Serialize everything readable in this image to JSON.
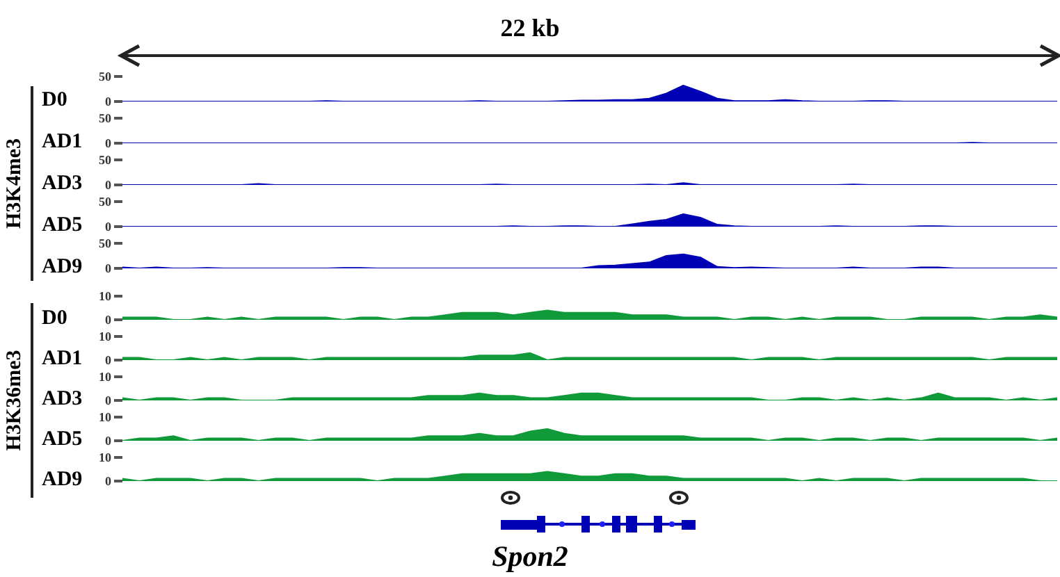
{
  "chart_data": [
    {
      "type": "area",
      "title": "22 kb",
      "annotations": [
        "H3K4me3"
      ],
      "ylabel": "D0",
      "color": "#0000b4",
      "ylim": [
        0,
        50
      ],
      "yticks": [
        0,
        50
      ],
      "categories": [
        null,
        null,
        null,
        null,
        null,
        null,
        null,
        null,
        null,
        null,
        null,
        null,
        null,
        null,
        null,
        null,
        null,
        null,
        null,
        null,
        null,
        null,
        null,
        null,
        null,
        null,
        null,
        null,
        null,
        null,
        null,
        null,
        null,
        null,
        null,
        null,
        null,
        null,
        null,
        null,
        null,
        null,
        null,
        null,
        null,
        null,
        null,
        null,
        null,
        null,
        null,
        null,
        null,
        null,
        null,
        null
      ],
      "values": [
        0,
        0,
        0,
        0,
        0,
        0,
        0,
        0,
        0,
        0,
        0,
        0,
        1,
        0,
        0,
        0,
        0,
        0,
        0,
        0,
        0,
        1,
        0,
        0,
        0,
        0,
        1,
        2,
        2,
        3,
        3,
        6,
        16,
        32,
        20,
        6,
        1,
        1,
        1,
        3,
        1,
        0,
        0,
        0,
        1,
        1,
        0,
        0,
        0,
        0,
        0,
        0,
        0,
        0,
        0,
        0
      ]
    },
    {
      "type": "area",
      "ylabel": "AD1",
      "color": "#0000b4",
      "ylim": [
        0,
        50
      ],
      "yticks": [
        0,
        50
      ],
      "categories": [
        null,
        null,
        null,
        null,
        null,
        null,
        null,
        null,
        null,
        null,
        null,
        null,
        null,
        null,
        null,
        null,
        null,
        null,
        null,
        null,
        null,
        null,
        null,
        null,
        null,
        null,
        null,
        null,
        null,
        null,
        null,
        null,
        null,
        null,
        null,
        null,
        null,
        null,
        null,
        null,
        null,
        null,
        null,
        null,
        null,
        null,
        null,
        null,
        null,
        null,
        null,
        null,
        null,
        null,
        null,
        null
      ],
      "values": [
        0,
        0,
        0,
        0,
        0,
        0,
        0,
        0,
        0,
        0,
        0,
        0,
        0,
        0,
        0,
        0,
        0,
        0,
        0,
        0,
        0,
        0,
        0,
        0,
        0,
        0,
        0,
        0,
        0,
        0,
        0,
        0,
        0,
        0,
        0,
        0,
        0,
        0,
        0,
        0,
        0,
        0,
        0,
        0,
        0,
        0,
        0,
        0,
        0,
        0,
        1,
        0,
        0,
        0,
        0,
        0
      ]
    },
    {
      "type": "area",
      "ylabel": "AD3",
      "color": "#0000b4",
      "ylim": [
        0,
        50
      ],
      "yticks": [
        0,
        50
      ],
      "categories": [
        null,
        null,
        null,
        null,
        null,
        null,
        null,
        null,
        null,
        null,
        null,
        null,
        null,
        null,
        null,
        null,
        null,
        null,
        null,
        null,
        null,
        null,
        null,
        null,
        null,
        null,
        null,
        null,
        null,
        null,
        null,
        null,
        null,
        null,
        null,
        null,
        null,
        null,
        null,
        null,
        null,
        null,
        null,
        null,
        null,
        null,
        null,
        null,
        null,
        null,
        null,
        null,
        null,
        null,
        null,
        null
      ],
      "values": [
        0,
        0,
        0,
        0,
        0,
        0,
        0,
        0,
        2,
        0,
        0,
        0,
        0,
        0,
        0,
        0,
        0,
        0,
        0,
        0,
        0,
        0,
        1,
        0,
        0,
        0,
        0,
        0,
        0,
        0,
        0,
        1,
        0,
        4,
        0,
        0,
        0,
        0,
        0,
        0,
        0,
        0,
        0,
        1,
        0,
        0,
        0,
        0,
        0,
        0,
        0,
        0,
        0,
        0,
        0,
        0
      ]
    },
    {
      "type": "area",
      "ylabel": "AD5",
      "color": "#0000b4",
      "ylim": [
        0,
        50
      ],
      "yticks": [
        0,
        50
      ],
      "categories": [
        null,
        null,
        null,
        null,
        null,
        null,
        null,
        null,
        null,
        null,
        null,
        null,
        null,
        null,
        null,
        null,
        null,
        null,
        null,
        null,
        null,
        null,
        null,
        null,
        null,
        null,
        null,
        null,
        null,
        null,
        null,
        null,
        null,
        null,
        null,
        null,
        null,
        null,
        null,
        null,
        null,
        null,
        null,
        null,
        null,
        null,
        null,
        null,
        null,
        null,
        null,
        null,
        null,
        null,
        null,
        null
      ],
      "values": [
        0,
        0,
        0,
        0,
        0,
        0,
        0,
        0,
        0,
        0,
        0,
        0,
        0,
        0,
        0,
        0,
        0,
        0,
        0,
        0,
        0,
        0,
        0,
        1,
        0,
        0,
        1,
        1,
        0,
        0,
        5,
        10,
        14,
        25,
        18,
        4,
        1,
        0,
        0,
        0,
        0,
        0,
        1,
        0,
        0,
        0,
        0,
        1,
        1,
        0,
        0,
        0,
        0,
        0,
        0,
        0
      ]
    },
    {
      "type": "area",
      "ylabel": "AD9",
      "color": "#0000b4",
      "ylim": [
        0,
        50
      ],
      "yticks": [
        0,
        50
      ],
      "categories": [
        null,
        null,
        null,
        null,
        null,
        null,
        null,
        null,
        null,
        null,
        null,
        null,
        null,
        null,
        null,
        null,
        null,
        null,
        null,
        null,
        null,
        null,
        null,
        null,
        null,
        null,
        null,
        null,
        null,
        null,
        null,
        null,
        null,
        null,
        null,
        null,
        null,
        null,
        null,
        null,
        null,
        null,
        null,
        null,
        null,
        null,
        null,
        null,
        null,
        null,
        null,
        null,
        null,
        null,
        null,
        null
      ],
      "values": [
        2,
        0,
        2,
        0,
        0,
        1,
        0,
        0,
        0,
        0,
        0,
        0,
        0,
        1,
        1,
        0,
        0,
        0,
        0,
        0,
        0,
        0,
        0,
        0,
        0,
        0,
        0,
        0,
        5,
        6,
        9,
        12,
        25,
        28,
        22,
        3,
        1,
        2,
        1,
        0,
        0,
        0,
        0,
        2,
        0,
        0,
        0,
        2,
        2,
        0,
        0,
        0,
        0,
        0,
        0,
        0
      ]
    },
    {
      "type": "area",
      "annotations": [
        "H3K36me3"
      ],
      "ylabel": "D0",
      "color": "#109a3a",
      "ylim": [
        0,
        10
      ],
      "yticks": [
        0,
        10
      ],
      "categories": [
        null,
        null,
        null,
        null,
        null,
        null,
        null,
        null,
        null,
        null,
        null,
        null,
        null,
        null,
        null,
        null,
        null,
        null,
        null,
        null,
        null,
        null,
        null,
        null,
        null,
        null,
        null,
        null,
        null,
        null,
        null,
        null,
        null,
        null,
        null,
        null,
        null,
        null,
        null,
        null,
        null,
        null,
        null,
        null,
        null,
        null,
        null,
        null,
        null,
        null,
        null,
        null,
        null,
        null,
        null,
        null
      ],
      "values": [
        1,
        1,
        1,
        0,
        0,
        1,
        0,
        1,
        0,
        1,
        1,
        1,
        1,
        0,
        1,
        1,
        0,
        1,
        1,
        2,
        3,
        3,
        3,
        2,
        3,
        4,
        3,
        3,
        3,
        3,
        2,
        2,
        2,
        1,
        1,
        1,
        0,
        1,
        1,
        0,
        1,
        0,
        1,
        1,
        1,
        0,
        0,
        1,
        1,
        1,
        1,
        0,
        1,
        1,
        2,
        1
      ]
    },
    {
      "type": "area",
      "ylabel": "AD1",
      "color": "#109a3a",
      "ylim": [
        0,
        10
      ],
      "yticks": [
        0,
        10
      ],
      "categories": [
        null,
        null,
        null,
        null,
        null,
        null,
        null,
        null,
        null,
        null,
        null,
        null,
        null,
        null,
        null,
        null,
        null,
        null,
        null,
        null,
        null,
        null,
        null,
        null,
        null,
        null,
        null,
        null,
        null,
        null,
        null,
        null,
        null,
        null,
        null,
        null,
        null,
        null,
        null,
        null,
        null,
        null,
        null,
        null,
        null,
        null,
        null,
        null,
        null,
        null,
        null,
        null,
        null,
        null,
        null,
        null
      ],
      "values": [
        1,
        1,
        0,
        0,
        1,
        0,
        1,
        0,
        1,
        1,
        1,
        0,
        1,
        1,
        1,
        1,
        1,
        1,
        1,
        1,
        1,
        2,
        2,
        2,
        3,
        0,
        1,
        1,
        1,
        1,
        1,
        1,
        1,
        1,
        1,
        1,
        1,
        0,
        1,
        1,
        1,
        0,
        1,
        1,
        1,
        1,
        1,
        1,
        1,
        1,
        1,
        0,
        1,
        1,
        1,
        1
      ]
    },
    {
      "type": "area",
      "ylabel": "AD3",
      "color": "#109a3a",
      "ylim": [
        0,
        10
      ],
      "yticks": [
        0,
        10
      ],
      "categories": [
        null,
        null,
        null,
        null,
        null,
        null,
        null,
        null,
        null,
        null,
        null,
        null,
        null,
        null,
        null,
        null,
        null,
        null,
        null,
        null,
        null,
        null,
        null,
        null,
        null,
        null,
        null,
        null,
        null,
        null,
        null,
        null,
        null,
        null,
        null,
        null,
        null,
        null,
        null,
        null,
        null,
        null,
        null,
        null,
        null,
        null,
        null,
        null,
        null,
        null,
        null,
        null,
        null,
        null,
        null,
        null
      ],
      "values": [
        1,
        0,
        1,
        1,
        0,
        1,
        1,
        0,
        0,
        0,
        1,
        1,
        1,
        1,
        1,
        1,
        1,
        1,
        2,
        2,
        2,
        3,
        2,
        2,
        1,
        1,
        2,
        3,
        3,
        2,
        1,
        1,
        1,
        1,
        1,
        1,
        1,
        1,
        0,
        0,
        1,
        1,
        0,
        1,
        0,
        1,
        0,
        1,
        3,
        1,
        1,
        1,
        0,
        1,
        0,
        1
      ]
    },
    {
      "type": "area",
      "ylabel": "AD5",
      "color": "#109a3a",
      "ylim": [
        0,
        10
      ],
      "yticks": [
        0,
        10
      ],
      "categories": [
        null,
        null,
        null,
        null,
        null,
        null,
        null,
        null,
        null,
        null,
        null,
        null,
        null,
        null,
        null,
        null,
        null,
        null,
        null,
        null,
        null,
        null,
        null,
        null,
        null,
        null,
        null,
        null,
        null,
        null,
        null,
        null,
        null,
        null,
        null,
        null,
        null,
        null,
        null,
        null,
        null,
        null,
        null,
        null,
        null,
        null,
        null,
        null,
        null,
        null,
        null,
        null,
        null,
        null,
        null,
        null
      ],
      "values": [
        0,
        1,
        1,
        2,
        0,
        1,
        1,
        1,
        0,
        1,
        1,
        0,
        1,
        1,
        1,
        1,
        1,
        1,
        2,
        2,
        2,
        3,
        2,
        2,
        4,
        5,
        3,
        2,
        2,
        2,
        2,
        2,
        2,
        2,
        1,
        1,
        1,
        1,
        0,
        1,
        1,
        0,
        1,
        1,
        0,
        1,
        1,
        0,
        1,
        1,
        1,
        1,
        1,
        1,
        0,
        1
      ]
    },
    {
      "type": "area",
      "ylabel": "AD9",
      "xlabel": "Spon2",
      "color": "#109a3a",
      "ylim": [
        0,
        10
      ],
      "yticks": [
        0,
        10
      ],
      "categories": [
        null,
        null,
        null,
        null,
        null,
        null,
        null,
        null,
        null,
        null,
        null,
        null,
        null,
        null,
        null,
        null,
        null,
        null,
        null,
        null,
        null,
        null,
        null,
        null,
        null,
        null,
        null,
        null,
        null,
        null,
        null,
        null,
        null,
        null,
        null,
        null,
        null,
        null,
        null,
        null,
        null,
        null,
        null,
        null,
        null,
        null,
        null,
        null,
        null,
        null,
        null,
        null,
        null,
        null,
        null,
        null
      ],
      "values": [
        1,
        0,
        1,
        1,
        1,
        0,
        1,
        1,
        0,
        1,
        1,
        1,
        1,
        1,
        1,
        0,
        1,
        1,
        1,
        2,
        3,
        3,
        3,
        3,
        3,
        4,
        3,
        2,
        2,
        3,
        3,
        2,
        2,
        1,
        1,
        1,
        1,
        1,
        1,
        1,
        0,
        1,
        0,
        1,
        1,
        1,
        0,
        1,
        1,
        1,
        1,
        1,
        1,
        1,
        0,
        0
      ]
    }
  ]
}
